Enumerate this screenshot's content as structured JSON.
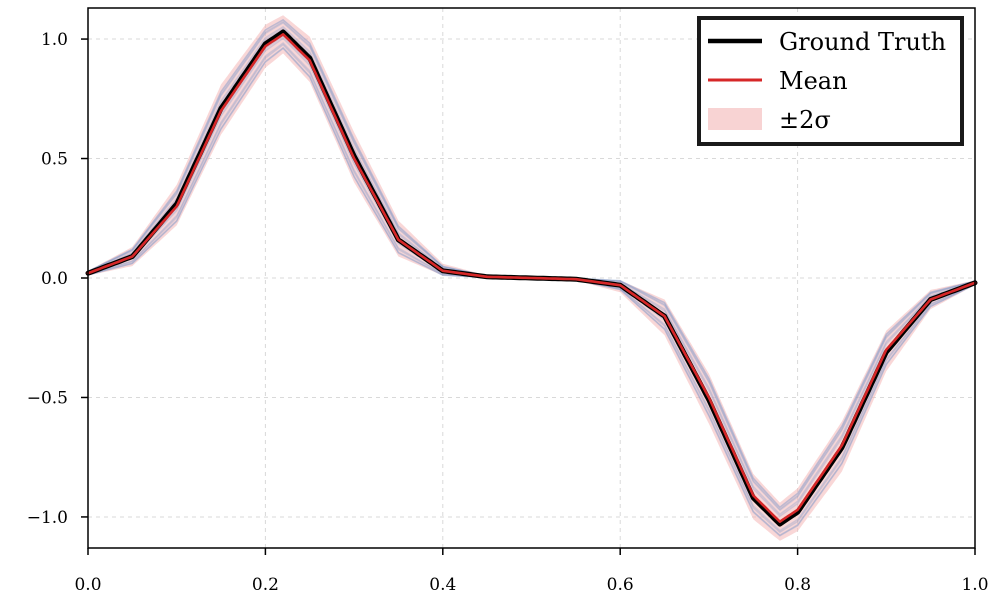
{
  "chart_data": {
    "type": "line",
    "title": "",
    "xlabel": "",
    "ylabel": "",
    "xlim": [
      0.0,
      1.0
    ],
    "ylim": [
      -1.13,
      1.13
    ],
    "x_ticks": [
      0.0,
      0.2,
      0.4,
      0.6,
      0.8,
      1.0
    ],
    "x_tick_labels": [
      "0.0",
      "0.2",
      "0.4",
      "0.6",
      "0.8",
      "1.0"
    ],
    "y_ticks": [
      -1.0,
      -0.5,
      0.0,
      0.5,
      1.0
    ],
    "y_tick_labels": [
      "−1.0",
      "−0.5",
      "0.0",
      "0.5",
      "1.0"
    ],
    "grid": true,
    "legend_position": "top-right",
    "legend": [
      {
        "label": "Ground Truth",
        "kind": "line",
        "color": "#000000"
      },
      {
        "label": "Mean",
        "kind": "line",
        "color": "#d62728"
      },
      {
        "label": "±2σ",
        "kind": "band",
        "color": "#f4b6b6"
      }
    ],
    "series": [
      {
        "name": "Ground Truth",
        "color": "#000000",
        "x": [
          0.0,
          0.05,
          0.1,
          0.15,
          0.2,
          0.22,
          0.25,
          0.3,
          0.35,
          0.4,
          0.45,
          0.5,
          0.55,
          0.6,
          0.65,
          0.7,
          0.75,
          0.78,
          0.8,
          0.85,
          0.9,
          0.95,
          1.0
        ],
        "y": [
          0.02,
          0.09,
          0.31,
          0.71,
          0.98,
          1.03,
          0.92,
          0.51,
          0.16,
          0.03,
          0.005,
          0.0,
          -0.005,
          -0.03,
          -0.16,
          -0.51,
          -0.92,
          -1.03,
          -0.98,
          -0.71,
          -0.31,
          -0.09,
          -0.02
        ]
      },
      {
        "name": "Mean",
        "color": "#d62728",
        "x": [
          0.0,
          0.05,
          0.1,
          0.15,
          0.2,
          0.22,
          0.25,
          0.3,
          0.35,
          0.4,
          0.45,
          0.5,
          0.55,
          0.6,
          0.65,
          0.7,
          0.75,
          0.78,
          0.8,
          0.85,
          0.9,
          0.95,
          1.0
        ],
        "y": [
          0.02,
          0.09,
          0.3,
          0.7,
          0.97,
          1.02,
          0.91,
          0.5,
          0.16,
          0.03,
          0.005,
          0.0,
          -0.005,
          -0.03,
          -0.16,
          -0.5,
          -0.91,
          -1.02,
          -0.97,
          -0.7,
          -0.3,
          -0.09,
          -0.02
        ]
      }
    ],
    "band": {
      "name": "±2σ",
      "color": "#f4b6b6",
      "x": [
        0.0,
        0.05,
        0.1,
        0.15,
        0.2,
        0.22,
        0.25,
        0.3,
        0.35,
        0.4,
        0.45,
        0.5,
        0.55,
        0.6,
        0.65,
        0.7,
        0.75,
        0.78,
        0.8,
        0.85,
        0.9,
        0.95,
        1.0
      ],
      "upper": [
        0.03,
        0.13,
        0.39,
        0.81,
        1.06,
        1.1,
        1.01,
        0.61,
        0.24,
        0.06,
        0.01,
        0.005,
        0.0,
        -0.01,
        -0.09,
        -0.4,
        -0.82,
        -0.94,
        -0.88,
        -0.6,
        -0.22,
        -0.05,
        -0.01
      ],
      "lower": [
        0.01,
        0.05,
        0.22,
        0.6,
        0.88,
        0.94,
        0.82,
        0.4,
        0.09,
        0.01,
        0.0,
        -0.005,
        -0.01,
        -0.06,
        -0.24,
        -0.61,
        -1.01,
        -1.1,
        -1.06,
        -0.81,
        -0.39,
        -0.13,
        -0.03
      ]
    },
    "samples_color": "#6a8fc7"
  }
}
